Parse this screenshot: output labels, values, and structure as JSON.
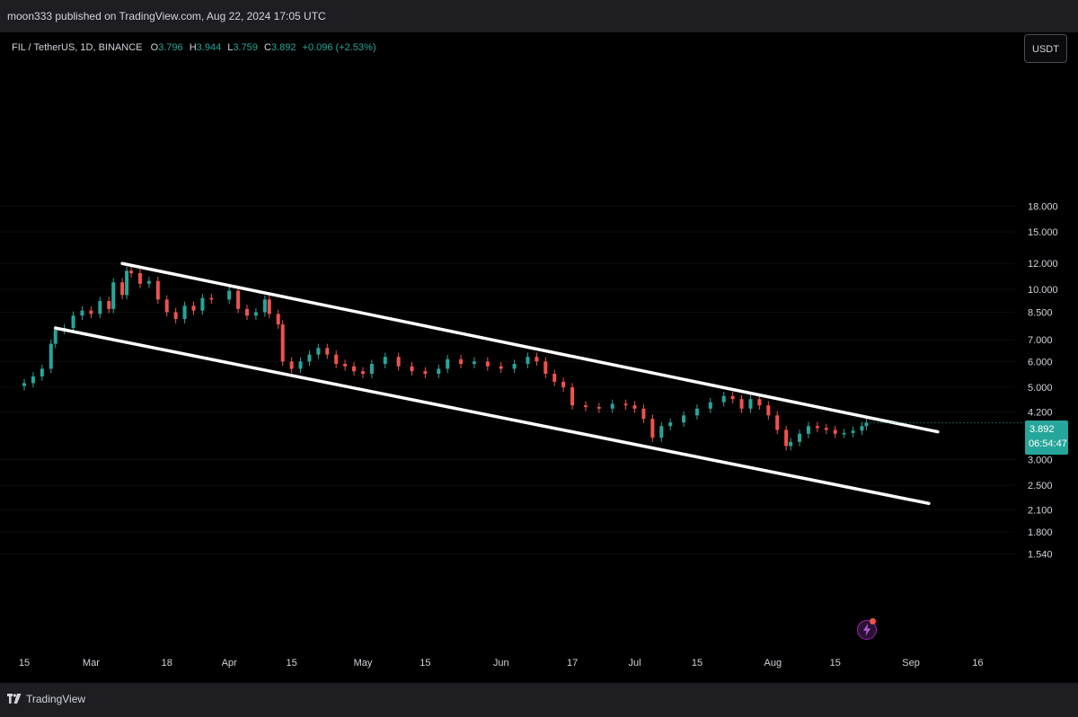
{
  "publish_info": "moon333 published on TradingView.com, Aug 22, 2024 17:05 UTC",
  "symbol_bar": {
    "symbol": "FIL / TetherUS, 1D, BINANCE",
    "o_label": "O",
    "o_value": "3.796",
    "h_label": "H",
    "h_value": "3.944",
    "l_label": "L",
    "l_value": "3.759",
    "c_label": "C",
    "c_value": "3.892",
    "change": "+0.096 (+2.53%)"
  },
  "currency_button": "USDT",
  "price_label": {
    "price": "3.892",
    "countdown": "06:54:47"
  },
  "footer": {
    "brand": "TradingView"
  },
  "colors": {
    "up": "#26a69a",
    "down": "#ef5350",
    "background": "#000000",
    "panel": "#1e1e22",
    "text": "#d1d4dc",
    "trendline": "#ffffff",
    "accent": "#9c27b0"
  },
  "icons": {
    "flash": "lightning-icon",
    "logo": "tradingview-logo-icon"
  },
  "chart_data": {
    "type": "candlestick",
    "scale": "log",
    "y_ticks": [
      "18.000",
      "15.000",
      "12.000",
      "10.000",
      "8.500",
      "7.000",
      "6.000",
      "5.000",
      "4.200",
      "3.000",
      "2.500",
      "2.100",
      "1.800",
      "1.540"
    ],
    "x_ticks": [
      {
        "label": "15",
        "date": "2024-02-15"
      },
      {
        "label": "Mar",
        "date": "2024-03-01"
      },
      {
        "label": "18",
        "date": "2024-03-18"
      },
      {
        "label": "Apr",
        "date": "2024-04-01"
      },
      {
        "label": "15",
        "date": "2024-04-15"
      },
      {
        "label": "May",
        "date": "2024-05-01"
      },
      {
        "label": "15",
        "date": "2024-05-15"
      },
      {
        "label": "Jun",
        "date": "2024-06-01"
      },
      {
        "label": "17",
        "date": "2024-06-17"
      },
      {
        "label": "Jul",
        "date": "2024-07-01"
      },
      {
        "label": "15",
        "date": "2024-07-15"
      },
      {
        "label": "Aug",
        "date": "2024-08-01"
      },
      {
        "label": "15",
        "date": "2024-08-15"
      },
      {
        "label": "Sep",
        "date": "2024-09-01"
      },
      {
        "label": "16",
        "date": "2024-09-16"
      }
    ],
    "closes": [
      {
        "date": "2024-02-15",
        "close": 5.15
      },
      {
        "date": "2024-02-17",
        "close": 5.4
      },
      {
        "date": "2024-02-19",
        "close": 5.7
      },
      {
        "date": "2024-02-21",
        "close": 6.8
      },
      {
        "date": "2024-02-22",
        "close": 7.5
      },
      {
        "date": "2024-02-24",
        "close": 7.6
      },
      {
        "date": "2024-02-26",
        "close": 8.3
      },
      {
        "date": "2024-02-28",
        "close": 8.6
      },
      {
        "date": "2024-03-01",
        "close": 8.4
      },
      {
        "date": "2024-03-03",
        "close": 9.2
      },
      {
        "date": "2024-03-05",
        "close": 8.7
      },
      {
        "date": "2024-03-06",
        "close": 10.5
      },
      {
        "date": "2024-03-08",
        "close": 9.6
      },
      {
        "date": "2024-03-09",
        "close": 11.4
      },
      {
        "date": "2024-03-10",
        "close": 11.2
      },
      {
        "date": "2024-03-12",
        "close": 10.4
      },
      {
        "date": "2024-03-14",
        "close": 10.6
      },
      {
        "date": "2024-03-16",
        "close": 9.3
      },
      {
        "date": "2024-03-18",
        "close": 8.5
      },
      {
        "date": "2024-03-20",
        "close": 8.1
      },
      {
        "date": "2024-03-22",
        "close": 8.9
      },
      {
        "date": "2024-03-24",
        "close": 8.6
      },
      {
        "date": "2024-03-26",
        "close": 9.4
      },
      {
        "date": "2024-03-28",
        "close": 9.3
      },
      {
        "date": "2024-04-01",
        "close": 9.9
      },
      {
        "date": "2024-04-03",
        "close": 8.7
      },
      {
        "date": "2024-04-05",
        "close": 8.3
      },
      {
        "date": "2024-04-07",
        "close": 8.5
      },
      {
        "date": "2024-04-09",
        "close": 9.3
      },
      {
        "date": "2024-04-10",
        "close": 8.4
      },
      {
        "date": "2024-04-12",
        "close": 7.8
      },
      {
        "date": "2024-04-13",
        "close": 6.0
      },
      {
        "date": "2024-04-15",
        "close": 5.7
      },
      {
        "date": "2024-04-17",
        "close": 6.0
      },
      {
        "date": "2024-04-19",
        "close": 6.3
      },
      {
        "date": "2024-04-21",
        "close": 6.6
      },
      {
        "date": "2024-04-23",
        "close": 6.3
      },
      {
        "date": "2024-04-25",
        "close": 5.9
      },
      {
        "date": "2024-04-27",
        "close": 5.8
      },
      {
        "date": "2024-04-29",
        "close": 5.6
      },
      {
        "date": "2024-05-01",
        "close": 5.5
      },
      {
        "date": "2024-05-03",
        "close": 5.9
      },
      {
        "date": "2024-05-06",
        "close": 6.2
      },
      {
        "date": "2024-05-09",
        "close": 5.8
      },
      {
        "date": "2024-05-12",
        "close": 5.6
      },
      {
        "date": "2024-05-15",
        "close": 5.5
      },
      {
        "date": "2024-05-18",
        "close": 5.7
      },
      {
        "date": "2024-05-20",
        "close": 6.1
      },
      {
        "date": "2024-05-23",
        "close": 5.9
      },
      {
        "date": "2024-05-26",
        "close": 6.0
      },
      {
        "date": "2024-05-29",
        "close": 5.8
      },
      {
        "date": "2024-06-01",
        "close": 5.7
      },
      {
        "date": "2024-06-04",
        "close": 5.9
      },
      {
        "date": "2024-06-07",
        "close": 6.2
      },
      {
        "date": "2024-06-09",
        "close": 6.0
      },
      {
        "date": "2024-06-11",
        "close": 5.5
      },
      {
        "date": "2024-06-13",
        "close": 5.2
      },
      {
        "date": "2024-06-15",
        "close": 5.0
      },
      {
        "date": "2024-06-17",
        "close": 4.4
      },
      {
        "date": "2024-06-20",
        "close": 4.35
      },
      {
        "date": "2024-06-23",
        "close": 4.3
      },
      {
        "date": "2024-06-26",
        "close": 4.45
      },
      {
        "date": "2024-06-29",
        "close": 4.4
      },
      {
        "date": "2024-07-01",
        "close": 4.3
      },
      {
        "date": "2024-07-03",
        "close": 4.0
      },
      {
        "date": "2024-07-05",
        "close": 3.5
      },
      {
        "date": "2024-07-07",
        "close": 3.8
      },
      {
        "date": "2024-07-09",
        "close": 3.9
      },
      {
        "date": "2024-07-12",
        "close": 4.1
      },
      {
        "date": "2024-07-15",
        "close": 4.3
      },
      {
        "date": "2024-07-18",
        "close": 4.5
      },
      {
        "date": "2024-07-21",
        "close": 4.7
      },
      {
        "date": "2024-07-23",
        "close": 4.6
      },
      {
        "date": "2024-07-25",
        "close": 4.3
      },
      {
        "date": "2024-07-27",
        "close": 4.6
      },
      {
        "date": "2024-07-29",
        "close": 4.4
      },
      {
        "date": "2024-07-31",
        "close": 4.1
      },
      {
        "date": "2024-08-02",
        "close": 3.7
      },
      {
        "date": "2024-08-04",
        "close": 3.3
      },
      {
        "date": "2024-08-05",
        "close": 3.4
      },
      {
        "date": "2024-08-07",
        "close": 3.6
      },
      {
        "date": "2024-08-09",
        "close": 3.8
      },
      {
        "date": "2024-08-11",
        "close": 3.75
      },
      {
        "date": "2024-08-13",
        "close": 3.7
      },
      {
        "date": "2024-08-15",
        "close": 3.6
      },
      {
        "date": "2024-08-17",
        "close": 3.62
      },
      {
        "date": "2024-08-19",
        "close": 3.68
      },
      {
        "date": "2024-08-21",
        "close": 3.8
      },
      {
        "date": "2024-08-22",
        "close": 3.892
      }
    ],
    "trendlines": [
      {
        "name": "upper",
        "start": {
          "date": "2024-03-08",
          "price": 12.0
        },
        "end": {
          "date": "2024-09-07",
          "price": 3.65
        }
      },
      {
        "name": "lower",
        "start": {
          "date": "2024-02-22",
          "price": 7.6
        },
        "end": {
          "date": "2024-09-05",
          "price": 2.2
        }
      }
    ],
    "last_price": 3.892
  }
}
